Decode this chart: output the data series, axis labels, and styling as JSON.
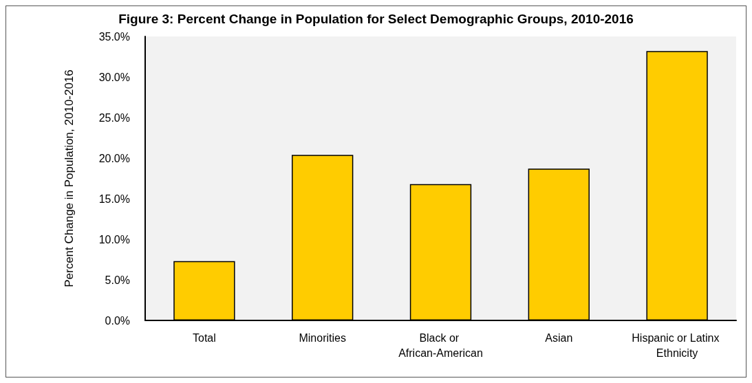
{
  "chart_data": {
    "type": "bar",
    "title": "Figure 3: Percent Change in Population for Select Demographic Groups, 2010-2016",
    "ylabel": "Percent Change in Population, 2010-2016",
    "categories": [
      "Total",
      "Minorities",
      "Black or African-American",
      "Asian",
      "Hispanic or Latinx Ethnicity"
    ],
    "values": [
      7.3,
      20.4,
      16.8,
      18.7,
      33.2
    ],
    "color": "#ffcc00",
    "ylim": [
      0,
      35
    ],
    "yticks": [
      {
        "value": 0,
        "label": "0.0%"
      },
      {
        "value": 5,
        "label": "5.0%"
      },
      {
        "value": 10,
        "label": "10.0%"
      },
      {
        "value": 15,
        "label": "15.0%"
      },
      {
        "value": 20,
        "label": "20.0%"
      },
      {
        "value": 25,
        "label": "25.0%"
      },
      {
        "value": 30,
        "label": "30.0%"
      },
      {
        "value": 35,
        "label": "35.0%"
      }
    ],
    "grid": false
  }
}
